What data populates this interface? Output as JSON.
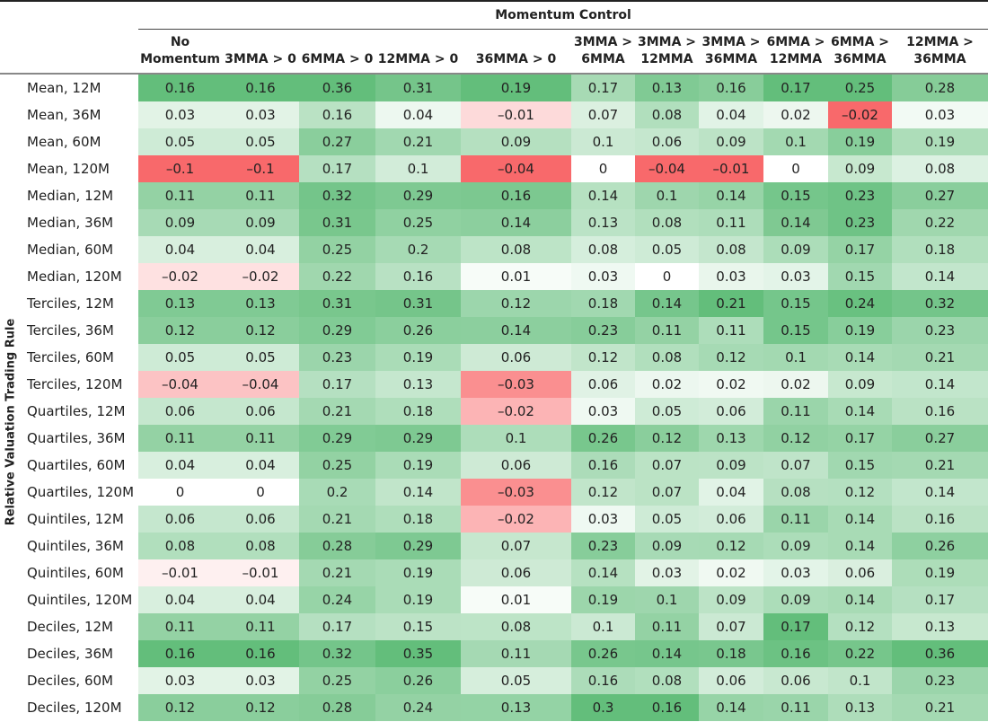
{
  "chart_data": {
    "type": "heatmap",
    "title": "Momentum Control",
    "ylabel": "Relative Valuation Trading Rule",
    "colors": {
      "positive": "#63be7b",
      "negative": "#f8696b",
      "zero": "#ffffff"
    },
    "columns": [
      "No\nMomentum",
      "3MMA > 0",
      "6MMA > 0",
      "12MMA > 0",
      "36MMA > 0",
      "3MMA >\n6MMA",
      "3MMA >\n12MMA",
      "3MMA >\n36MMA",
      "6MMA >\n12MMA",
      "6MMA >\n36MMA",
      "12MMA >\n36MMA"
    ],
    "rows": [
      {
        "label": "Mean, 12M",
        "values": [
          0.16,
          0.16,
          0.36,
          0.31,
          0.19,
          0.17,
          0.13,
          0.16,
          0.17,
          0.25,
          0.28
        ]
      },
      {
        "label": "Mean, 36M",
        "values": [
          0.03,
          0.03,
          0.16,
          0.04,
          -0.01,
          0.07,
          0.08,
          0.04,
          0.02,
          -0.02,
          0.03
        ]
      },
      {
        "label": "Mean, 60M",
        "values": [
          0.05,
          0.05,
          0.27,
          0.21,
          0.09,
          0.1,
          0.06,
          0.09,
          0.1,
          0.19,
          0.19
        ]
      },
      {
        "label": "Mean, 120M",
        "values": [
          -0.1,
          -0.1,
          0.17,
          0.1,
          -0.04,
          0,
          -0.04,
          -0.01,
          0,
          0.09,
          0.08
        ]
      },
      {
        "label": "Median, 12M",
        "values": [
          0.11,
          0.11,
          0.32,
          0.29,
          0.16,
          0.14,
          0.1,
          0.14,
          0.15,
          0.23,
          0.27
        ]
      },
      {
        "label": "Median, 36M",
        "values": [
          0.09,
          0.09,
          0.31,
          0.25,
          0.14,
          0.13,
          0.08,
          0.11,
          0.14,
          0.23,
          0.22
        ]
      },
      {
        "label": "Median, 60M",
        "values": [
          0.04,
          0.04,
          0.25,
          0.2,
          0.08,
          0.08,
          0.05,
          0.08,
          0.09,
          0.17,
          0.18
        ]
      },
      {
        "label": "Median, 120M",
        "values": [
          -0.02,
          -0.02,
          0.22,
          0.16,
          0.01,
          0.03,
          0,
          0.03,
          0.03,
          0.15,
          0.14
        ]
      },
      {
        "label": "Terciles, 12M",
        "values": [
          0.13,
          0.13,
          0.31,
          0.31,
          0.12,
          0.18,
          0.14,
          0.21,
          0.15,
          0.24,
          0.32
        ]
      },
      {
        "label": "Terciles, 36M",
        "values": [
          0.12,
          0.12,
          0.29,
          0.26,
          0.14,
          0.23,
          0.11,
          0.11,
          0.15,
          0.19,
          0.23
        ]
      },
      {
        "label": "Terciles, 60M",
        "values": [
          0.05,
          0.05,
          0.23,
          0.19,
          0.06,
          0.12,
          0.08,
          0.12,
          0.1,
          0.14,
          0.21
        ]
      },
      {
        "label": "Terciles, 120M",
        "values": [
          -0.04,
          -0.04,
          0.17,
          0.13,
          -0.03,
          0.06,
          0.02,
          0.02,
          0.02,
          0.09,
          0.14
        ]
      },
      {
        "label": "Quartiles, 12M",
        "values": [
          0.06,
          0.06,
          0.21,
          0.18,
          -0.02,
          0.03,
          0.05,
          0.06,
          0.11,
          0.14,
          0.16
        ]
      },
      {
        "label": "Quartiles, 36M",
        "values": [
          0.11,
          0.11,
          0.29,
          0.29,
          0.1,
          0.26,
          0.12,
          0.13,
          0.12,
          0.17,
          0.27
        ]
      },
      {
        "label": "Quartiles, 60M",
        "values": [
          0.04,
          0.04,
          0.25,
          0.19,
          0.06,
          0.16,
          0.07,
          0.09,
          0.07,
          0.15,
          0.21
        ]
      },
      {
        "label": "Quartiles, 120M",
        "values": [
          0,
          0,
          0.2,
          0.14,
          -0.03,
          0.12,
          0.07,
          0.04,
          0.08,
          0.12,
          0.14
        ]
      },
      {
        "label": "Quintiles, 12M",
        "values": [
          0.06,
          0.06,
          0.21,
          0.18,
          -0.02,
          0.03,
          0.05,
          0.06,
          0.11,
          0.14,
          0.16
        ]
      },
      {
        "label": "Quintiles, 36M",
        "values": [
          0.08,
          0.08,
          0.28,
          0.29,
          0.07,
          0.23,
          0.09,
          0.12,
          0.09,
          0.14,
          0.26
        ]
      },
      {
        "label": "Quintiles, 60M",
        "values": [
          -0.01,
          -0.01,
          0.21,
          0.19,
          0.06,
          0.14,
          0.03,
          0.02,
          0.03,
          0.06,
          0.19
        ]
      },
      {
        "label": "Quintiles, 120M",
        "values": [
          0.04,
          0.04,
          0.24,
          0.19,
          0.01,
          0.19,
          0.1,
          0.09,
          0.09,
          0.14,
          0.17
        ]
      },
      {
        "label": "Deciles, 12M",
        "values": [
          0.11,
          0.11,
          0.17,
          0.15,
          0.08,
          0.1,
          0.11,
          0.07,
          0.17,
          0.12,
          0.13
        ]
      },
      {
        "label": "Deciles, 36M",
        "values": [
          0.16,
          0.16,
          0.32,
          0.35,
          0.11,
          0.26,
          0.14,
          0.18,
          0.16,
          0.22,
          0.36
        ]
      },
      {
        "label": "Deciles, 60M",
        "values": [
          0.03,
          0.03,
          0.25,
          0.26,
          0.05,
          0.16,
          0.08,
          0.06,
          0.06,
          0.1,
          0.23
        ]
      },
      {
        "label": "Deciles, 120M",
        "values": [
          0.12,
          0.12,
          0.28,
          0.24,
          0.13,
          0.3,
          0.16,
          0.14,
          0.11,
          0.13,
          0.21
        ]
      }
    ]
  }
}
